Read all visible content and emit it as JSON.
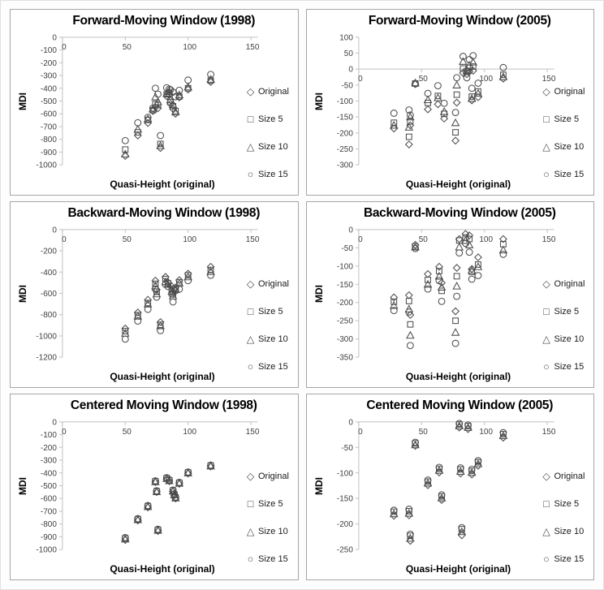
{
  "page": {
    "background": "#ffffff",
    "panel_border_color": "#a6a6a6",
    "axis_color": "#c0c0c0",
    "marker_color": "#4d4d4d",
    "tick_text_color": "#404040"
  },
  "legend": {
    "position": "right",
    "items": [
      {
        "label": "Original",
        "marker": "diamond",
        "glyph": "◇"
      },
      {
        "label": "Size 5",
        "marker": "square",
        "glyph": "□"
      },
      {
        "label": "Size 10",
        "marker": "triangle",
        "glyph": "△"
      },
      {
        "label": "Size 15",
        "marker": "circle",
        "glyph": "○"
      }
    ]
  },
  "chart_data": [
    {
      "type": "scatter",
      "title": "Forward-Moving Window (1998)",
      "xlabel": "Quasi-Height (original)",
      "ylabel": "MDI",
      "xlim": [
        0,
        155
      ],
      "ylim": [
        -1000,
        0
      ],
      "xticks": [
        0,
        50,
        100,
        150
      ],
      "yticks": [
        0,
        -100,
        -200,
        -300,
        -400,
        -500,
        -600,
        -700,
        -800,
        -900,
        -1000
      ],
      "grid": false,
      "x": [
        50,
        60,
        68,
        72,
        74,
        76,
        78,
        83,
        85,
        86,
        88,
        90,
        93,
        100,
        118
      ],
      "series": [
        {
          "name": "Original",
          "marker": "diamond",
          "values": [
            -930,
            -770,
            -672,
            -578,
            -548,
            -556,
            -868,
            -462,
            -452,
            -522,
            -562,
            -600,
            -472,
            -410,
            -350
          ]
        },
        {
          "name": "Size 5",
          "marker": "square",
          "values": [
            -880,
            -745,
            -648,
            -572,
            -524,
            -532,
            -836,
            -447,
            -440,
            -508,
            -540,
            -578,
            -465,
            -400,
            -340
          ]
        },
        {
          "name": "Size 10",
          "marker": "triangle",
          "values": [
            -915,
            -720,
            -640,
            -562,
            -468,
            -506,
            -850,
            -440,
            -426,
            -490,
            -528,
            -586,
            -452,
            -390,
            -330
          ]
        },
        {
          "name": "Size 15",
          "marker": "circle",
          "values": [
            -810,
            -670,
            -628,
            -555,
            -400,
            -446,
            -770,
            -396,
            -406,
            -412,
            -430,
            -466,
            -416,
            -336,
            -292
          ]
        }
      ]
    },
    {
      "type": "scatter",
      "title": "Forward-Moving Window (2005)",
      "xlabel": "Quasi-Height (original)",
      "ylabel": "MDI",
      "xlim": [
        0,
        155
      ],
      "ylim": [
        -300,
        100
      ],
      "xticks": [
        0,
        50,
        100,
        150
      ],
      "yticks": [
        100,
        50,
        0,
        -50,
        -100,
        -150,
        -200,
        -250,
        -300
      ],
      "grid": false,
      "x": [
        28,
        40,
        41,
        45,
        55,
        63,
        68,
        77,
        78,
        83,
        86,
        88,
        90,
        91,
        95,
        115
      ],
      "series": [
        {
          "name": "Original",
          "marker": "diamond",
          "values": [
            -186,
            -236,
            -176,
            -47,
            -126,
            -110,
            -155,
            -224,
            -105,
            -12,
            -16,
            -8,
            -98,
            -5,
            -88,
            -30
          ]
        },
        {
          "name": "Size 5",
          "marker": "square",
          "values": [
            -168,
            -212,
            -164,
            -45,
            -106,
            -84,
            -140,
            -198,
            -80,
            2,
            -6,
            4,
            -86,
            8,
            -70,
            -18
          ]
        },
        {
          "name": "Size 10",
          "marker": "triangle",
          "values": [
            -176,
            -182,
            -150,
            -43,
            -96,
            -90,
            -133,
            -168,
            -50,
            24,
            -3,
            12,
            -92,
            22,
            -76,
            -24
          ]
        },
        {
          "name": "Size 15",
          "marker": "circle",
          "values": [
            -138,
            -128,
            -144,
            -46,
            -76,
            -52,
            -107,
            -136,
            -27,
            40,
            -27,
            30,
            -60,
            42,
            -44,
            5
          ]
        }
      ]
    },
    {
      "type": "scatter",
      "title": "Backward-Moving Window (1998)",
      "xlabel": "Quasi-Height (original)",
      "ylabel": "MDI",
      "xlim": [
        0,
        155
      ],
      "ylim": [
        -1200,
        0
      ],
      "xticks": [
        0,
        50,
        100,
        150
      ],
      "yticks": [
        0,
        -200,
        -400,
        -600,
        -800,
        -1000,
        -1200
      ],
      "grid": false,
      "x": [
        50,
        60,
        68,
        74,
        75,
        78,
        82,
        84,
        87,
        88,
        90,
        93,
        100,
        118
      ],
      "series": [
        {
          "name": "Original",
          "marker": "diamond",
          "values": [
            -930,
            -780,
            -660,
            -480,
            -565,
            -870,
            -445,
            -495,
            -535,
            -590,
            -545,
            -475,
            -415,
            -350
          ]
        },
        {
          "name": "Size 5",
          "marker": "square",
          "values": [
            -955,
            -805,
            -690,
            -510,
            -585,
            -895,
            -465,
            -505,
            -560,
            -610,
            -555,
            -495,
            -430,
            -380
          ]
        },
        {
          "name": "Size 10",
          "marker": "triangle",
          "values": [
            -975,
            -815,
            -700,
            -530,
            -605,
            -905,
            -490,
            -515,
            -580,
            -625,
            -565,
            -505,
            -445,
            -395
          ]
        },
        {
          "name": "Size 15",
          "marker": "circle",
          "values": [
            -1030,
            -860,
            -750,
            -560,
            -635,
            -950,
            -515,
            -535,
            -605,
            -680,
            -575,
            -560,
            -480,
            -430
          ]
        }
      ]
    },
    {
      "type": "scatter",
      "title": "Backward-Moving Window (2005)",
      "xlabel": "Quasi-Height (original)",
      "ylabel": "MDI",
      "xlim": [
        0,
        155
      ],
      "ylim": [
        -350,
        0
      ],
      "xticks": [
        0,
        50,
        100,
        150
      ],
      "yticks": [
        0,
        -50,
        -100,
        -150,
        -200,
        -250,
        -300,
        -350
      ],
      "grid": false,
      "x": [
        28,
        40,
        41,
        45,
        55,
        64,
        66,
        77,
        78,
        80,
        85,
        88,
        90,
        95,
        115
      ],
      "series": [
        {
          "name": "Original",
          "marker": "diamond",
          "values": [
            -186,
            -180,
            -234,
            -42,
            -122,
            -102,
            -146,
            -224,
            -105,
            -26,
            -12,
            -16,
            -108,
            -76,
            -26
          ]
        },
        {
          "name": "Size 5",
          "marker": "square",
          "values": [
            -198,
            -196,
            -260,
            -46,
            -138,
            -114,
            -168,
            -250,
            -128,
            -30,
            -22,
            -26,
            -116,
            -96,
            -40
          ]
        },
        {
          "name": "Size 10",
          "marker": "triangle",
          "values": [
            -208,
            -218,
            -290,
            -48,
            -150,
            -128,
            -158,
            -282,
            -155,
            -48,
            -30,
            -42,
            -112,
            -102,
            -56
          ]
        },
        {
          "name": "Size 15",
          "marker": "circle",
          "values": [
            -222,
            -226,
            -318,
            -52,
            -163,
            -140,
            -197,
            -312,
            -183,
            -64,
            -38,
            -62,
            -136,
            -126,
            -68
          ]
        }
      ]
    },
    {
      "type": "scatter",
      "title": "Centered Moving Window (1998)",
      "xlabel": "Quasi-Height (original)",
      "ylabel": "MDI",
      "xlim": [
        0,
        155
      ],
      "ylim": [
        -1000,
        0
      ],
      "xticks": [
        0,
        50,
        100,
        150
      ],
      "yticks": [
        0,
        -100,
        -200,
        -300,
        -400,
        -500,
        -600,
        -700,
        -800,
        -900,
        -1000
      ],
      "grid": false,
      "x": [
        50,
        60,
        68,
        74,
        75,
        76,
        83,
        85,
        88,
        89,
        90,
        93,
        100,
        118
      ],
      "series": [
        {
          "name": "Original",
          "marker": "diamond",
          "values": [
            -925,
            -772,
            -670,
            -472,
            -550,
            -855,
            -448,
            -465,
            -545,
            -575,
            -600,
            -485,
            -404,
            -350
          ]
        },
        {
          "name": "Size 5",
          "marker": "square",
          "values": [
            -912,
            -762,
            -660,
            -465,
            -543,
            -845,
            -440,
            -457,
            -537,
            -567,
            -592,
            -477,
            -396,
            -342
          ]
        },
        {
          "name": "Size 10",
          "marker": "triangle",
          "values": [
            -918,
            -766,
            -664,
            -469,
            -547,
            -850,
            -444,
            -461,
            -541,
            -571,
            -596,
            -481,
            -400,
            -346
          ]
        },
        {
          "name": "Size 15",
          "marker": "circle",
          "values": [
            -906,
            -758,
            -655,
            -462,
            -540,
            -841,
            -437,
            -453,
            -534,
            -564,
            -589,
            -474,
            -393,
            -339
          ]
        }
      ]
    },
    {
      "type": "scatter",
      "title": "Centered Moving Window (2005)",
      "xlabel": "Quasi-Height (original)",
      "ylabel": "MDI",
      "xlim": [
        0,
        155
      ],
      "ylim": [
        -250,
        0
      ],
      "xticks": [
        0,
        50,
        100,
        150
      ],
      "yticks": [
        0,
        -50,
        -100,
        -150,
        -200,
        -250
      ],
      "grid": false,
      "x": [
        28,
        40,
        41,
        45,
        55,
        64,
        66,
        80,
        81,
        82,
        87,
        90,
        95,
        115
      ],
      "series": [
        {
          "name": "Original",
          "marker": "diamond",
          "values": [
            -184,
            -183,
            -233,
            -47,
            -124,
            -99,
            -153,
            -11,
            -101,
            -222,
            -14,
            -103,
            -86,
            -31
          ]
        },
        {
          "name": "Size 5",
          "marker": "square",
          "values": [
            -176,
            -175,
            -223,
            -42,
            -117,
            -92,
            -146,
            -5,
            -93,
            -210,
            -8,
            -96,
            -79,
            -24
          ]
        },
        {
          "name": "Size 10",
          "marker": "triangle",
          "values": [
            -180,
            -179,
            -228,
            -45,
            -120,
            -95,
            -149,
            -8,
            -97,
            -215,
            -11,
            -99,
            -82,
            -27
          ]
        },
        {
          "name": "Size 15",
          "marker": "circle",
          "values": [
            -173,
            -171,
            -220,
            -40,
            -114,
            -89,
            -143,
            -3,
            -90,
            -207,
            -6,
            -93,
            -76,
            -21
          ]
        }
      ]
    }
  ]
}
